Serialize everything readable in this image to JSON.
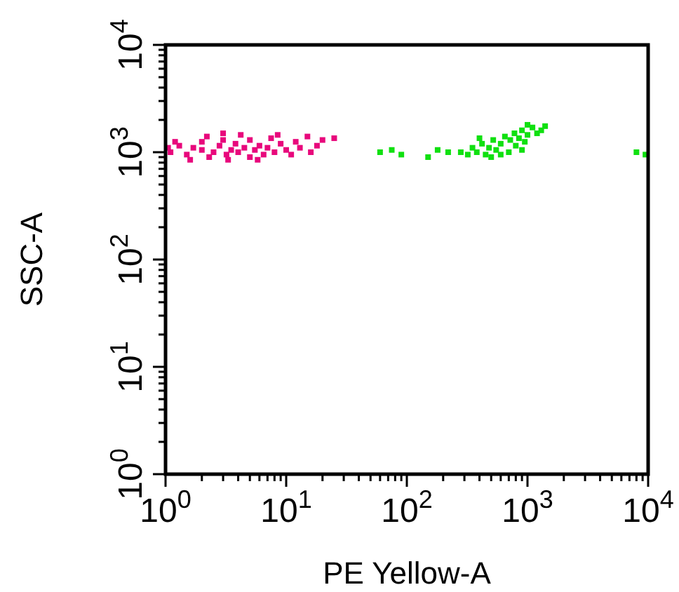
{
  "chart_data": {
    "type": "scatter",
    "xlabel": "PE Yellow-A",
    "ylabel": "SSC-A",
    "log": "xy",
    "marker": "square",
    "grid": false,
    "xlim": [
      1,
      10000
    ],
    "ylim": [
      1,
      10000
    ],
    "xticks": [
      {
        "value": 1,
        "label": "10$^{0}$"
      },
      {
        "value": 2,
        "label": null
      },
      {
        "value": 3,
        "label": null
      },
      {
        "value": 4,
        "label": null
      },
      {
        "value": 5,
        "label": null
      },
      {
        "value": 6,
        "label": null
      },
      {
        "value": 7,
        "label": null
      },
      {
        "value": 8,
        "label": null
      },
      {
        "value": 9,
        "label": null
      },
      {
        "value": 10,
        "label": "10$^{1}$"
      },
      {
        "value": 20,
        "label": null
      },
      {
        "value": 30,
        "label": null
      },
      {
        "value": 40,
        "label": null
      },
      {
        "value": 50,
        "label": null
      },
      {
        "value": 60,
        "label": null
      },
      {
        "value": 70,
        "label": null
      },
      {
        "value": 80,
        "label": null
      },
      {
        "value": 90,
        "label": null
      },
      {
        "value": 100,
        "label": "10$^{2}$"
      },
      {
        "value": 200,
        "label": null
      },
      {
        "value": 300,
        "label": null
      },
      {
        "value": 400,
        "label": null
      },
      {
        "value": 500,
        "label": null
      },
      {
        "value": 600,
        "label": null
      },
      {
        "value": 700,
        "label": null
      },
      {
        "value": 800,
        "label": null
      },
      {
        "value": 900,
        "label": null
      },
      {
        "value": 1000,
        "label": "10$^{3}$"
      },
      {
        "value": 2000,
        "label": null
      },
      {
        "value": 3000,
        "label": null
      },
      {
        "value": 4000,
        "label": null
      },
      {
        "value": 5000,
        "label": null
      },
      {
        "value": 6000,
        "label": null
      },
      {
        "value": 7000,
        "label": null
      },
      {
        "value": 8000,
        "label": null
      },
      {
        "value": 9000,
        "label": null
      },
      {
        "value": 10000,
        "label": "10$^{4}$"
      }
    ],
    "yticks": [
      {
        "value": 1,
        "label": "10$^{0}$"
      },
      {
        "value": 2,
        "label": null
      },
      {
        "value": 3,
        "label": null
      },
      {
        "value": 4,
        "label": null
      },
      {
        "value": 5,
        "label": null
      },
      {
        "value": 6,
        "label": null
      },
      {
        "value": 7,
        "label": null
      },
      {
        "value": 8,
        "label": null
      },
      {
        "value": 9,
        "label": null
      },
      {
        "value": 10,
        "label": "10$^{1}$"
      },
      {
        "value": 20,
        "label": null
      },
      {
        "value": 30,
        "label": null
      },
      {
        "value": 40,
        "label": null
      },
      {
        "value": 50,
        "label": null
      },
      {
        "value": 60,
        "label": null
      },
      {
        "value": 70,
        "label": null
      },
      {
        "value": 80,
        "label": null
      },
      {
        "value": 90,
        "label": null
      },
      {
        "value": 100,
        "label": "10$^{2}$"
      },
      {
        "value": 200,
        "label": null
      },
      {
        "value": 300,
        "label": null
      },
      {
        "value": 400,
        "label": null
      },
      {
        "value": 500,
        "label": null
      },
      {
        "value": 600,
        "label": null
      },
      {
        "value": 700,
        "label": null
      },
      {
        "value": 800,
        "label": null
      },
      {
        "value": 900,
        "label": null
      },
      {
        "value": 1000,
        "label": "10$^{3}$"
      },
      {
        "value": 2000,
        "label": null
      },
      {
        "value": 3000,
        "label": null
      },
      {
        "value": 4000,
        "label": null
      },
      {
        "value": 5000,
        "label": null
      },
      {
        "value": 6000,
        "label": null
      },
      {
        "value": 7000,
        "label": null
      },
      {
        "value": 8000,
        "label": null
      },
      {
        "value": 9000,
        "label": null
      },
      {
        "value": 10000,
        "label": "10$^{4}$"
      }
    ],
    "series": [
      {
        "color": "#e8087c",
        "x": [
          1.1,
          1.3,
          1.5,
          1.7,
          2,
          2,
          2.3,
          2.5,
          2.8,
          3,
          3.2,
          3.5,
          3.8,
          4,
          4.5,
          5,
          5,
          5.5,
          6,
          6.5,
          7,
          7.5,
          8,
          9,
          10,
          11,
          12,
          13,
          15,
          16,
          18,
          20,
          1.2,
          1.6,
          2.2,
          3.3,
          4.2,
          5.8,
          8.5,
          1.05,
          25,
          3
        ],
        "values": [
          1000,
          1150,
          950,
          1100,
          1050,
          1250,
          900,
          1000,
          1150,
          1300,
          950,
          1050,
          1200,
          1000,
          1100,
          900,
          1300,
          1050,
          1150,
          950,
          1100,
          1350,
          1000,
          1200,
          1050,
          950,
          1250,
          1100,
          1400,
          1000,
          1150,
          1300,
          1250,
          850,
          1400,
          850,
          1450,
          850,
          1450,
          1100,
          1350,
          1500
        ]
      },
      {
        "color": "#10e010",
        "x": [
          60,
          75,
          90,
          150,
          180,
          220,
          280,
          320,
          350,
          380,
          420,
          450,
          480,
          520,
          550,
          600,
          650,
          700,
          720,
          780,
          800,
          850,
          900,
          950,
          1000,
          1100,
          1200,
          1300,
          400,
          500,
          600,
          900,
          1000,
          1400,
          8000,
          9500
        ],
        "values": [
          1000,
          1050,
          950,
          900,
          1050,
          1000,
          1000,
          950,
          1100,
          1000,
          1200,
          950,
          1100,
          1300,
          1050,
          1200,
          1400,
          1000,
          1300,
          1500,
          1150,
          1350,
          1600,
          1250,
          1450,
          1700,
          1500,
          1600,
          1350,
          900,
          950,
          1050,
          1800,
          1750,
          1000,
          950
        ]
      }
    ]
  }
}
